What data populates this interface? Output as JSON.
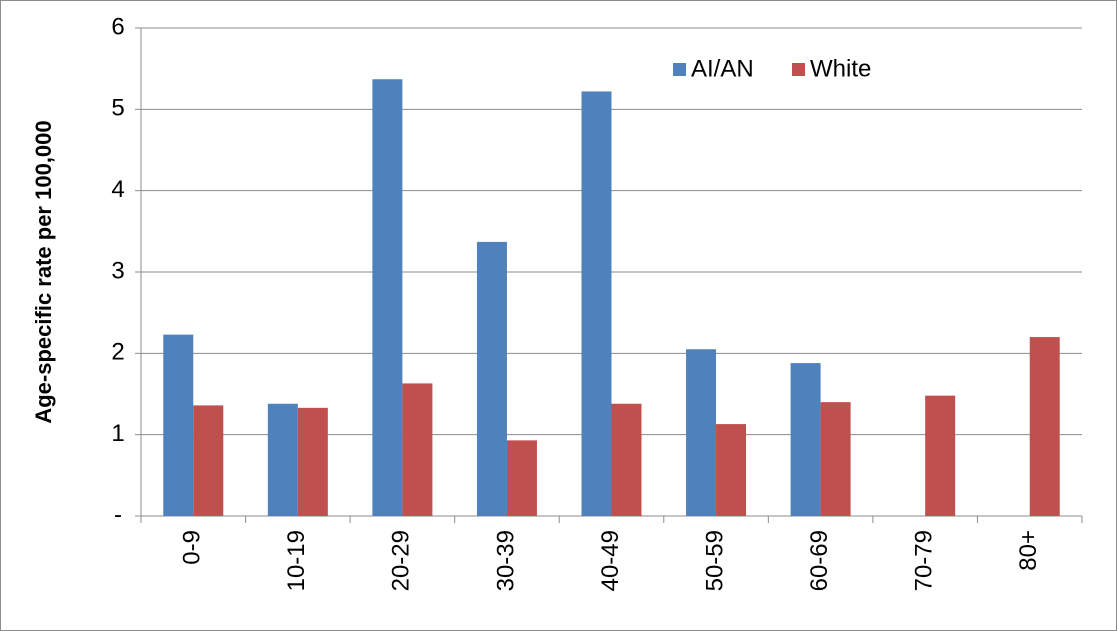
{
  "chart_data": {
    "type": "bar",
    "y_label": "Age-specific rate per 100,000",
    "categories": [
      "0-9",
      "10-19",
      "20-29",
      "30-39",
      "40-49",
      "50-59",
      "60-69",
      "70-79",
      "80+"
    ],
    "series": [
      {
        "name": "AI/AN",
        "color": "#4f81bd",
        "values": [
          2.23,
          1.38,
          5.37,
          3.37,
          5.22,
          2.05,
          1.88,
          null,
          null
        ]
      },
      {
        "name": "White",
        "color": "#c0504d",
        "values": [
          1.36,
          1.33,
          1.63,
          0.93,
          1.38,
          1.13,
          1.4,
          1.48,
          2.2
        ]
      }
    ],
    "ylim": [
      0,
      6
    ],
    "yticks": [
      {
        "value": 0,
        "label": "-"
      },
      1,
      2,
      3,
      4,
      5,
      6
    ],
    "grid": true
  }
}
